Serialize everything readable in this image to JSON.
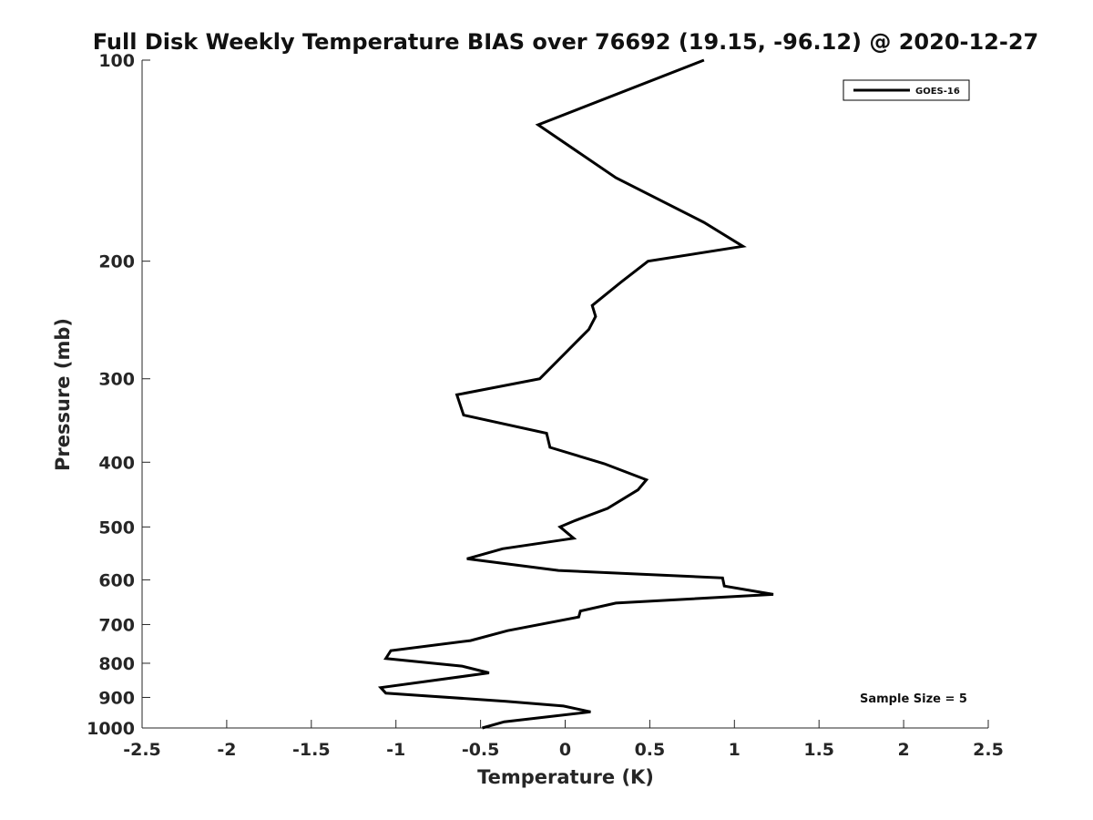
{
  "chart_data": {
    "type": "line",
    "title": "Full Disk Weekly Temperature BIAS over 76692 (19.15, -96.12) @ 2020-12-27",
    "xlabel": "Temperature (K)",
    "ylabel": "Pressure (mb)",
    "xlim": [
      -2.5,
      2.5
    ],
    "ylim": [
      100,
      1000
    ],
    "y_scale": "log",
    "y_direction": "reversed",
    "x_ticks": [
      -2.5,
      -2,
      -1.5,
      -1,
      -0.5,
      0,
      0.5,
      1,
      1.5,
      2,
      2.5
    ],
    "x_tick_labels": [
      "-2.5",
      "-2",
      "-1.5",
      "-1",
      "-0.5",
      "0",
      "0.5",
      "1",
      "1.5",
      "2",
      "2.5"
    ],
    "y_ticks": [
      100,
      200,
      300,
      400,
      500,
      600,
      700,
      800,
      900,
      1000
    ],
    "y_tick_labels": [
      "100",
      "200",
      "300",
      "400",
      "500",
      "600",
      "700",
      "800",
      "900",
      "1000"
    ],
    "grid": false,
    "legend_position": "top-right",
    "line_color": "#000000",
    "series": [
      {
        "name": "GOES-16",
        "points": [
          {
            "x": 0.82,
            "y": 100
          },
          {
            "x": -0.16,
            "y": 125
          },
          {
            "x": 0.3,
            "y": 150
          },
          {
            "x": 0.82,
            "y": 175
          },
          {
            "x": 1.05,
            "y": 190
          },
          {
            "x": 0.49,
            "y": 200
          },
          {
            "x": 0.33,
            "y": 215
          },
          {
            "x": 0.16,
            "y": 233
          },
          {
            "x": 0.18,
            "y": 242
          },
          {
            "x": 0.14,
            "y": 253
          },
          {
            "x": -0.15,
            "y": 300
          },
          {
            "x": -0.64,
            "y": 317
          },
          {
            "x": -0.6,
            "y": 340
          },
          {
            "x": -0.11,
            "y": 362
          },
          {
            "x": -0.09,
            "y": 380
          },
          {
            "x": 0.23,
            "y": 402
          },
          {
            "x": 0.48,
            "y": 425
          },
          {
            "x": 0.43,
            "y": 440
          },
          {
            "x": 0.25,
            "y": 469
          },
          {
            "x": 0.06,
            "y": 489
          },
          {
            "x": -0.03,
            "y": 500
          },
          {
            "x": 0.05,
            "y": 520
          },
          {
            "x": -0.37,
            "y": 539
          },
          {
            "x": -0.58,
            "y": 558
          },
          {
            "x": -0.04,
            "y": 581
          },
          {
            "x": 0.93,
            "y": 596
          },
          {
            "x": 0.94,
            "y": 613
          },
          {
            "x": 1.23,
            "y": 631
          },
          {
            "x": 0.3,
            "y": 650
          },
          {
            "x": 0.09,
            "y": 668
          },
          {
            "x": 0.08,
            "y": 682
          },
          {
            "x": -0.34,
            "y": 715
          },
          {
            "x": -0.56,
            "y": 740
          },
          {
            "x": -1.03,
            "y": 766
          },
          {
            "x": -1.06,
            "y": 787
          },
          {
            "x": -0.61,
            "y": 808
          },
          {
            "x": -0.45,
            "y": 827
          },
          {
            "x": -1.09,
            "y": 870
          },
          {
            "x": -1.06,
            "y": 887
          },
          {
            "x": -0.35,
            "y": 912
          },
          {
            "x": -0.01,
            "y": 927
          },
          {
            "x": 0.15,
            "y": 946
          },
          {
            "x": -0.36,
            "y": 979
          },
          {
            "x": -0.49,
            "y": 1000
          }
        ]
      }
    ],
    "annotation": "Sample Size = 5"
  }
}
